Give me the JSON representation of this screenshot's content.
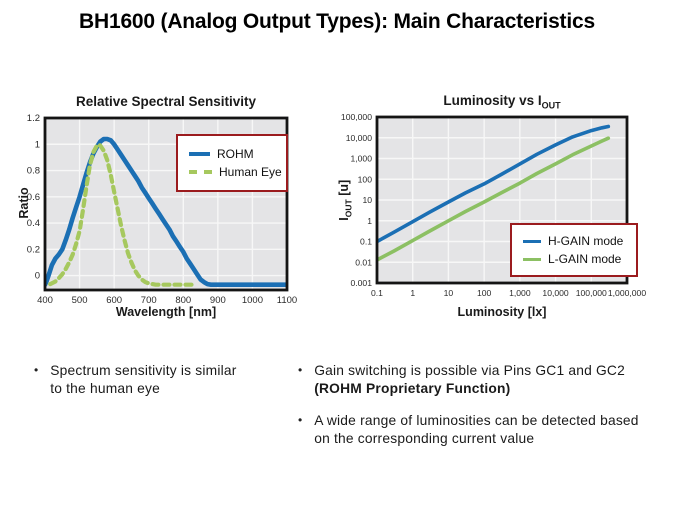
{
  "slide": {
    "title": "BH1600 (Analog Output Types): Main Characteristics"
  },
  "bullet_char": "•",
  "bullets_left": [
    {
      "text": "Spectrum sensitivity is similar to the human eye"
    }
  ],
  "bullets_right": [
    {
      "segments": [
        {
          "text": "Gain switching is possible via Pins GC1 and GC2 ",
          "bold": false
        },
        {
          "text": "(ROHM Proprietary Function)",
          "bold": true
        }
      ]
    },
    {
      "segments": [
        {
          "text": "A wide range of luminosities can be detected based on the corresponding current value",
          "bold": false
        }
      ]
    }
  ],
  "colors": {
    "rohm_blue": "#1b6fb4",
    "human_eye_green": "#a6c85e",
    "lgain_green": "#8cc063",
    "legend_border_red": "#9b1b1e",
    "plot_background": "#e4e4e6",
    "grid_white": "#f7f7f7",
    "plot_border_black": "#141414"
  },
  "chart_data": [
    {
      "type": "line",
      "title": "Relative Spectral Sensitivity",
      "xlabel": "Wavelength [nm]",
      "ylabel": "Ratio",
      "xscale": "linear",
      "yscale": "linear",
      "xlim": [
        400,
        1100
      ],
      "ylim": [
        -0.11,
        1.2
      ],
      "grid": true,
      "plot_bg": "#e4e4e6",
      "grid_color": "#f7f7f7",
      "border_color": "#141414",
      "xticks": {
        "values": [
          400,
          500,
          600,
          700,
          800,
          900,
          1000,
          1100
        ],
        "labels": [
          "400",
          "500",
          "600",
          "700",
          "800",
          "900",
          "1000",
          "1100"
        ]
      },
      "yticks": {
        "values": [
          0,
          0.2,
          0.4,
          0.6,
          0.8,
          1,
          1.2
        ],
        "labels": [
          "0",
          "0.2",
          "0.4",
          "0.6",
          "0.8",
          "1",
          "1.2"
        ]
      },
      "legend": {
        "position": "top-right",
        "border_color": "#9b1b1e",
        "items": [
          {
            "label": "ROHM",
            "color": "#1b6fb4",
            "style": "solid"
          },
          {
            "label": "Human Eye",
            "color": "#a6c85e",
            "style": "dashed"
          }
        ]
      },
      "series": [
        {
          "name": "ROHM",
          "color": "#1b6fb4",
          "width": 4.6,
          "dash": null,
          "points": [
            [
              400,
              -0.07
            ],
            [
              405,
              -0.04
            ],
            [
              410,
              0
            ],
            [
              420,
              0.08
            ],
            [
              430,
              0.13
            ],
            [
              440,
              0.16
            ],
            [
              450,
              0.2
            ],
            [
              460,
              0.27
            ],
            [
              470,
              0.35
            ],
            [
              480,
              0.44
            ],
            [
              490,
              0.52
            ],
            [
              500,
              0.6
            ],
            [
              510,
              0.69
            ],
            [
              520,
              0.78
            ],
            [
              530,
              0.86
            ],
            [
              540,
              0.93
            ],
            [
              550,
              0.98
            ],
            [
              560,
              1.02
            ],
            [
              570,
              1.04
            ],
            [
              580,
              1.04
            ],
            [
              590,
              1.03
            ],
            [
              600,
              1.0
            ],
            [
              610,
              0.96
            ],
            [
              620,
              0.92
            ],
            [
              630,
              0.88
            ],
            [
              640,
              0.84
            ],
            [
              650,
              0.8
            ],
            [
              660,
              0.76
            ],
            [
              670,
              0.72
            ],
            [
              680,
              0.67
            ],
            [
              690,
              0.63
            ],
            [
              700,
              0.59
            ],
            [
              710,
              0.55
            ],
            [
              720,
              0.51
            ],
            [
              730,
              0.47
            ],
            [
              740,
              0.43
            ],
            [
              750,
              0.39
            ],
            [
              760,
              0.35
            ],
            [
              770,
              0.3
            ],
            [
              780,
              0.26
            ],
            [
              790,
              0.22
            ],
            [
              800,
              0.18
            ],
            [
              810,
              0.13
            ],
            [
              820,
              0.09
            ],
            [
              830,
              0.05
            ],
            [
              840,
              0.01
            ],
            [
              850,
              -0.03
            ],
            [
              860,
              -0.05
            ],
            [
              870,
              -0.065
            ],
            [
              880,
              -0.07
            ],
            [
              950,
              -0.07
            ],
            [
              1000,
              -0.07
            ],
            [
              1100,
              -0.07
            ]
          ]
        },
        {
          "name": "Human Eye",
          "color": "#a6c85e",
          "width": 4.2,
          "dash": "6 5",
          "points": [
            [
              415,
              -0.065
            ],
            [
              430,
              -0.045
            ],
            [
              440,
              -0.02
            ],
            [
              450,
              0.01
            ],
            [
              460,
              0.05
            ],
            [
              470,
              0.1
            ],
            [
              480,
              0.16
            ],
            [
              490,
              0.24
            ],
            [
              500,
              0.34
            ],
            [
              510,
              0.5
            ],
            [
              520,
              0.68
            ],
            [
              530,
              0.84
            ],
            [
              540,
              0.94
            ],
            [
              550,
              0.99
            ],
            [
              555,
              1.0
            ],
            [
              560,
              0.99
            ],
            [
              570,
              0.95
            ],
            [
              580,
              0.88
            ],
            [
              590,
              0.77
            ],
            [
              600,
              0.64
            ],
            [
              610,
              0.51
            ],
            [
              620,
              0.38
            ],
            [
              630,
              0.27
            ],
            [
              640,
              0.17
            ],
            [
              650,
              0.1
            ],
            [
              660,
              0.04
            ],
            [
              670,
              0
            ],
            [
              680,
              -0.03
            ],
            [
              690,
              -0.05
            ],
            [
              700,
              -0.06
            ],
            [
              720,
              -0.07
            ],
            [
              760,
              -0.07
            ],
            [
              830,
              -0.07
            ]
          ]
        }
      ]
    },
    {
      "type": "line",
      "title_main": "Luminosity vs I",
      "title_sub": "OUT",
      "xlabel": "Luminosity [lx]",
      "ylabel_pre": "I",
      "ylabel_sub": "OUT",
      "ylabel_post": " [u]",
      "xscale": "log",
      "yscale": "log",
      "xlim": [
        0.1,
        1000000
      ],
      "ylim": [
        0.001,
        100000
      ],
      "grid": true,
      "plot_bg": "#e4e4e6",
      "grid_color": "#f7f7f7",
      "border_color": "#141414",
      "xticks": {
        "values": [
          0.1,
          1,
          10,
          100,
          1000,
          10000,
          100000,
          1000000
        ],
        "labels": [
          "0.1",
          "1",
          "10",
          "100",
          "1,000",
          "10,000",
          "100,000",
          "1,000,000"
        ]
      },
      "yticks": {
        "values": [
          0.001,
          0.01,
          0.1,
          1,
          10,
          100,
          1000,
          10000,
          100000
        ],
        "labels": [
          "0.001",
          "0.01",
          "0.1",
          "1",
          "10",
          "100",
          "1,000",
          "10,000",
          "100,000"
        ]
      },
      "legend": {
        "position": "bottom-right",
        "border_color": "#9b1b1e",
        "items": [
          {
            "label": "H-GAIN mode",
            "color": "#1b6fb4",
            "style": "solid"
          },
          {
            "label": "L-GAIN mode",
            "color": "#8cc063",
            "style": "solid"
          }
        ]
      },
      "series": [
        {
          "name": "H-GAIN mode",
          "color": "#1b6fb4",
          "width": 3.6,
          "dash": null,
          "points": [
            [
              0.1,
              0.1
            ],
            [
              0.3,
              0.28
            ],
            [
              1,
              0.9
            ],
            [
              3,
              2.6
            ],
            [
              10,
              8
            ],
            [
              30,
              22
            ],
            [
              100,
              60
            ],
            [
              300,
              170
            ],
            [
              1000,
              550
            ],
            [
              3000,
              1600
            ],
            [
              10000,
              4500
            ],
            [
              30000,
              11000
            ],
            [
              100000,
              22000
            ],
            [
              200000,
              30000
            ],
            [
              300000,
              35000
            ]
          ]
        },
        {
          "name": "L-GAIN mode",
          "color": "#8cc063",
          "width": 3.6,
          "dash": null,
          "points": [
            [
              0.1,
              0.013
            ],
            [
              0.3,
              0.035
            ],
            [
              1,
              0.11
            ],
            [
              3,
              0.32
            ],
            [
              10,
              1.0
            ],
            [
              30,
              2.8
            ],
            [
              100,
              8
            ],
            [
              300,
              22
            ],
            [
              1000,
              65
            ],
            [
              3000,
              190
            ],
            [
              10000,
              550
            ],
            [
              30000,
              1500
            ],
            [
              100000,
              4000
            ],
            [
              200000,
              7000
            ],
            [
              300000,
              9500
            ]
          ]
        }
      ]
    }
  ]
}
